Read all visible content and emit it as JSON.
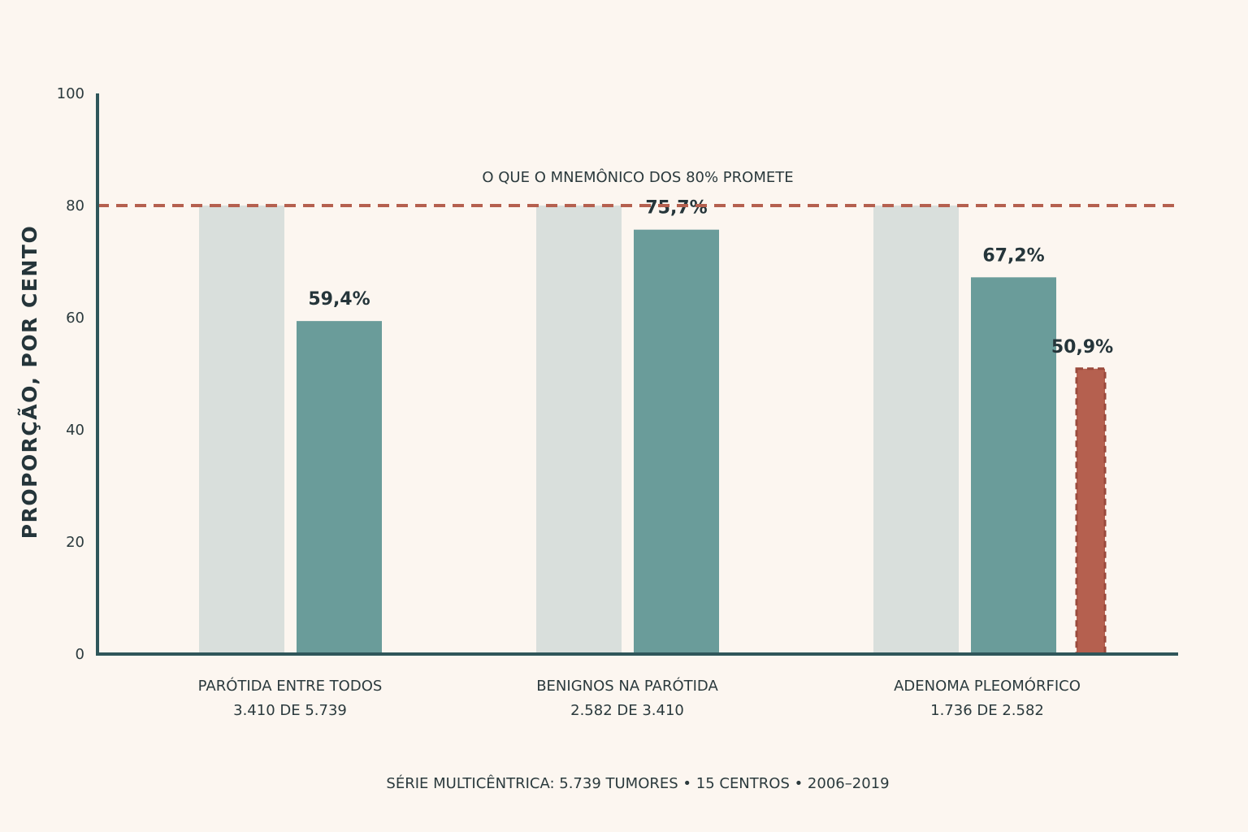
{
  "chart_data": {
    "type": "bar",
    "ylabel": "PROPORÇÃO, POR CENTO",
    "xlabel": "",
    "ylim": [
      0,
      100
    ],
    "yticks": [
      0,
      20,
      40,
      60,
      80,
      100
    ],
    "grid": false,
    "categories": [
      {
        "name": "PARÓTIDA ENTRE TODOS",
        "sub": "3.410 DE 5.739"
      },
      {
        "name": "BENIGNOS NA PARÓTIDA",
        "sub": "2.582 DE 3.410"
      },
      {
        "name": "ADENOMA PLEOMÓRFICO",
        "sub": "1.736 DE 2.582"
      }
    ],
    "series": [
      {
        "values": [
          80,
          80,
          80
        ],
        "color": "#d9dfdc",
        "labels": [
          null,
          null,
          null
        ]
      },
      {
        "values": [
          59.4,
          75.7,
          67.2
        ],
        "color": "#6a9c9a",
        "labels": [
          "59,4%",
          "75,7%",
          "67,2%"
        ]
      },
      {
        "values": [
          null,
          null,
          50.9
        ],
        "color": "#b5604f",
        "dashed": true,
        "labels": [
          null,
          null,
          "50,9%"
        ]
      }
    ],
    "reference_line": {
      "value": 80,
      "label": "O QUE O MNEMÔNICO DOS 80% PROMETE",
      "color": "#b5604f"
    },
    "caption": "SÉRIE MULTICÊNTRICA: 5.739 TUMORES • 15 CENTROS • 2006–2019",
    "colors": {
      "axis": "#2f565a",
      "text": "#2b3a3d",
      "background": "#fcf6f0"
    }
  }
}
